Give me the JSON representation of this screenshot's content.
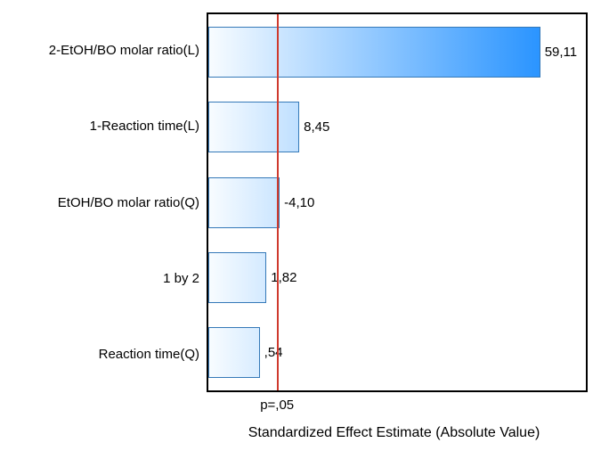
{
  "chart_data": {
    "type": "bar",
    "orientation": "horizontal",
    "title": "",
    "xlabel": "Standardized Effect Estimate (Absolute Value)",
    "ylabel": "",
    "categories": [
      "2-EtOH/BO molar ratio(L)",
      "1-Reaction time(L)",
      "EtOH/BO molar ratio(Q)",
      "1 by 2",
      "Reaction time(Q)"
    ],
    "values": [
      59.11,
      8.45,
      -4.1,
      1.82,
      0.54
    ],
    "value_labels": [
      "59,11",
      "8,45",
      "-4,10",
      "1,82",
      ",54"
    ],
    "threshold": {
      "label": "p=,05",
      "position_pct": 18.5
    },
    "bar_length_pct": [
      87.9,
      24.1,
      18.9,
      15.4,
      13.6
    ],
    "layout": {
      "grid": false,
      "legend": "none",
      "bars_start_at_left_axis": true
    },
    "colors": {
      "bar_gradient_start": "#f8fcff",
      "bar_gradient_end": "#0e86ff",
      "bar_border": "#3579b8",
      "threshold_line": "#cf3a2e",
      "plot_border": "#000000",
      "text": "#000000",
      "background": "#ffffff"
    }
  }
}
